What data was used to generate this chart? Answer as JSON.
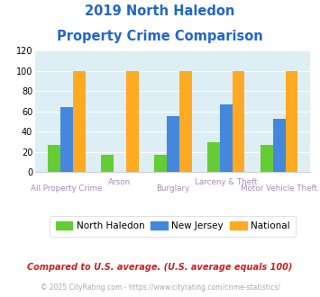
{
  "title_line1": "2019 North Haledon",
  "title_line2": "Property Crime Comparison",
  "categories": [
    "All Property Crime",
    "Arson",
    "Burglary",
    "Larceny & Theft",
    "Motor Vehicle Theft"
  ],
  "north_haledon": [
    27,
    17,
    17,
    30,
    27
  ],
  "new_jersey": [
    64,
    0,
    55,
    67,
    53
  ],
  "national": [
    100,
    100,
    100,
    100,
    100
  ],
  "arson_nh": 17,
  "arson_nj": 0,
  "bar_colors": {
    "north_haledon": "#66cc33",
    "new_jersey": "#4488dd",
    "national": "#ffaa22"
  },
  "ylim": [
    0,
    120
  ],
  "yticks": [
    0,
    20,
    40,
    60,
    80,
    100,
    120
  ],
  "legend_labels": [
    "North Haledon",
    "New Jersey",
    "National"
  ],
  "footnote1": "Compared to U.S. average. (U.S. average equals 100)",
  "footnote2": "© 2025 CityRating.com - https://www.cityrating.com/crime-statistics/",
  "title_color": "#2266cc",
  "footnote1_color": "#cc2222",
  "footnote2_color": "#aaaaaa",
  "xlabel_color": "#aa88bb",
  "plot_bg": "#ddeef5",
  "top_row_labels": {
    "1": "Arson",
    "3": "Larceny & Theft"
  },
  "bot_row_labels": {
    "0": "All Property Crime",
    "2": "Burglary",
    "4": "Motor Vehicle Theft"
  }
}
